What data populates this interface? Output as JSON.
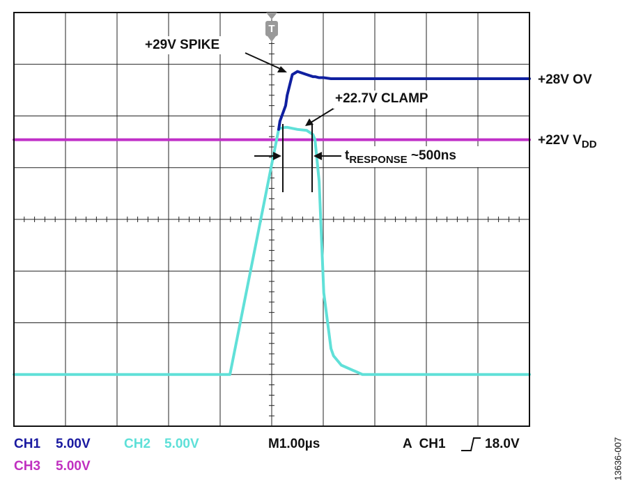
{
  "chart_data": {
    "type": "line",
    "x": [
      -5,
      -0.81,
      0.135,
      0.16,
      0.27,
      0.3,
      0.4,
      0.5,
      0.68,
      0.8,
      0.84,
      0.92,
      1.01,
      1.15,
      1.2,
      1.35,
      1.76,
      5
    ],
    "series": [
      {
        "name": "CH3",
        "color": "#c030c8",
        "values": [
          22.7,
          22.7,
          22.7,
          22.7,
          22.7,
          22.7,
          22.7,
          22.7,
          22.7,
          22.7,
          22.7,
          22.7,
          22.7,
          22.7,
          22.7,
          22.7,
          22.7,
          22.7
        ]
      },
      {
        "name": "CH2",
        "color": "#60e0d8",
        "values": [
          0,
          0,
          23.7,
          23.8,
          23.9,
          23.9,
          23.8,
          23.7,
          23.6,
          23.2,
          22.7,
          18.7,
          7.9,
          2.5,
          1.8,
          0.9,
          0,
          0
        ]
      },
      {
        "name": "CH1",
        "color": "#1020a0",
        "values": [
          null,
          null,
          23.7,
          24.5,
          26.0,
          27.0,
          29.0,
          29.3,
          29.0,
          28.8,
          28.8,
          28.7,
          28.7,
          28.6,
          28.6,
          28.6,
          28.6,
          28.6
        ]
      }
    ],
    "xlim": [
      -5,
      5
    ],
    "ylim": [
      -5,
      35
    ],
    "xticks": [
      -5,
      -4,
      -3,
      -2,
      -1,
      0,
      1,
      2,
      3,
      4,
      5
    ],
    "yticks": [
      -5,
      0,
      5,
      10,
      15,
      20,
      25,
      30,
      35
    ],
    "grid": true,
    "trigger_marker": "T",
    "annotations": {
      "spike": "+29V SPIKE",
      "clamp": "+22.7V CLAMP",
      "ov": "+28V OV",
      "vdd": {
        "text": "+22V V",
        "sub": "DD"
      },
      "response": {
        "text": "t",
        "sub": "RESPONSE",
        "after": " ~500ns"
      }
    },
    "readout": {
      "ch1": {
        "name": "CH1",
        "scale": "5.00V"
      },
      "ch2": {
        "name": "CH2",
        "scale": "5.00V"
      },
      "ch3": {
        "name": "CH3",
        "scale": "5.00V"
      },
      "timebase": "M1.00µs",
      "trigger": "A  CH1",
      "trigger_level": "18.0V"
    },
    "figure_id": "13636-007"
  }
}
